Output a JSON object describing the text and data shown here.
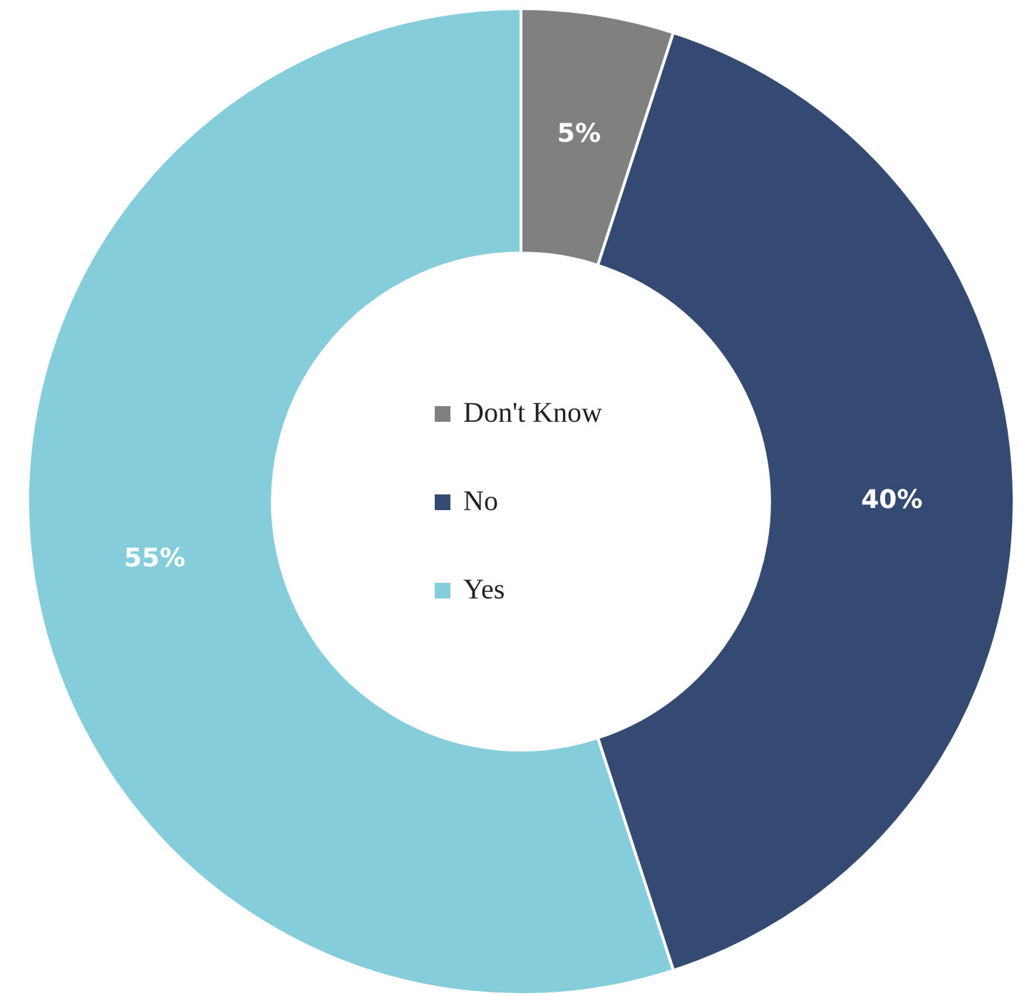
{
  "chart_data": {
    "type": "donut",
    "categories": [
      "Don't Know",
      "No",
      "Yes"
    ],
    "values": [
      5,
      40,
      55
    ],
    "colors": [
      "#808080",
      "#344a72",
      "#85cdda"
    ],
    "value_labels": [
      "5%",
      "40%",
      "55%"
    ],
    "legend": "center"
  }
}
